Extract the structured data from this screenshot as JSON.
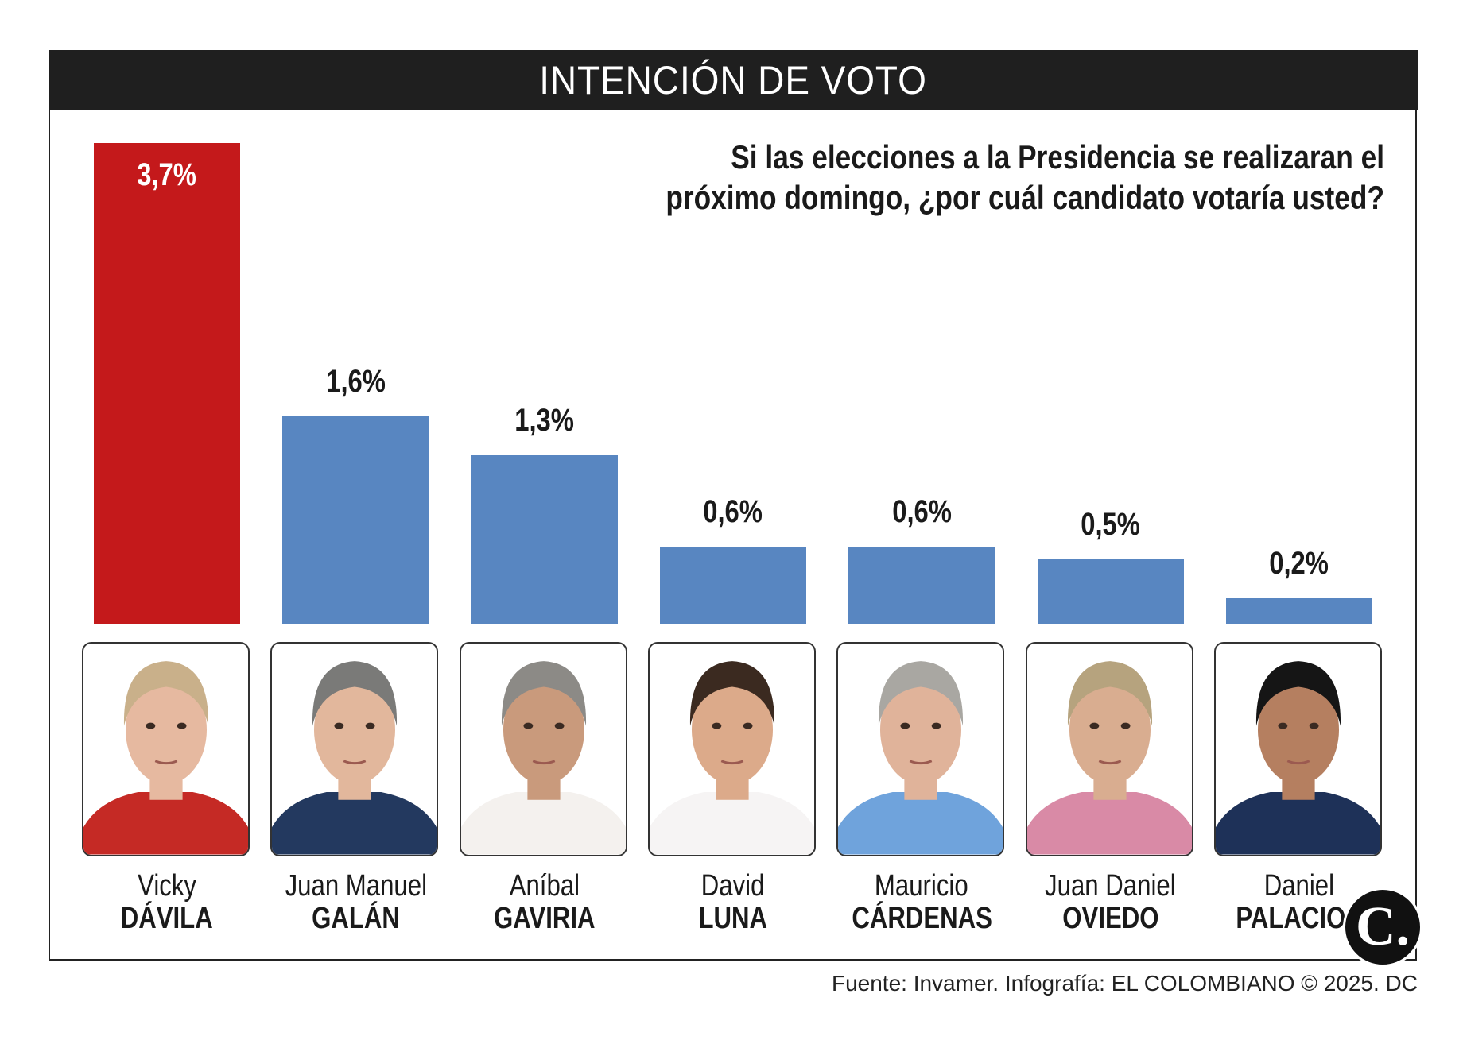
{
  "header": {
    "title": "INTENCIÓN DE VOTO"
  },
  "question": {
    "lines": [
      "Si las elecciones a la Presidencia se realizaran el",
      "próximo domingo, ¿por cuál candidato votaría usted?"
    ]
  },
  "colors": {
    "highlight": "#c4191b",
    "bar": "#5886c1",
    "header_bg": "#1f1f1f"
  },
  "chart_data": {
    "type": "bar",
    "title": "INTENCIÓN DE VOTO",
    "subtitle": "Si las elecciones a la Presidencia se realizaran el próximo domingo, ¿por cuál candidato votaría usted?",
    "unit": "%",
    "categories": [
      "Vicky Dávila",
      "Juan Manuel Galán",
      "Aníbal Gaviria",
      "David Luna",
      "Mauricio Cárdenas",
      "Juan Daniel Oviedo",
      "Daniel Palacios"
    ],
    "values": [
      3.7,
      1.6,
      1.3,
      0.6,
      0.6,
      0.5,
      0.2
    ],
    "labels": [
      "3,7%",
      "1,6%",
      "1,3%",
      "0,6%",
      "0,6%",
      "0,5%",
      "0,2%"
    ],
    "highlighted_index": 0,
    "xlabel": "",
    "ylabel": "",
    "ylim": [
      0,
      3.7
    ],
    "grid": false
  },
  "candidates": [
    {
      "first": "Vicky",
      "last": "DÁVILA",
      "hair": "#c9b08a",
      "cloth": "#c52a25",
      "skin": "#e6b9a0"
    },
    {
      "first": "Juan Manuel",
      "last": "GALÁN",
      "hair": "#7a7a78",
      "cloth": "#23395f",
      "skin": "#e2b79c"
    },
    {
      "first": "Aníbal",
      "last": "GAVIRIA",
      "hair": "#8c8a86",
      "cloth": "#f4f1ee",
      "skin": "#c99a7c"
    },
    {
      "first": "David",
      "last": "LUNA",
      "hair": "#3b2a20",
      "cloth": "#f6f4f4",
      "skin": "#dcaa8a"
    },
    {
      "first": "Mauricio",
      "last": "CÁRDENAS",
      "hair": "#a9a7a2",
      "cloth": "#6fa3dc",
      "skin": "#e0b39a"
    },
    {
      "first": "Juan Daniel",
      "last": "OVIEDO",
      "hair": "#b6a37e",
      "cloth": "#d98aa6",
      "skin": "#d9ad90"
    },
    {
      "first": "Daniel",
      "last": "PALACIOS",
      "hair": "#151515",
      "cloth": "#1e3158",
      "skin": "#b57f60"
    }
  ],
  "footer": {
    "source": "Fuente: Invamer. Infografía: EL COLOMBIANO © 2025. DC"
  },
  "logo": {
    "text": "C."
  }
}
